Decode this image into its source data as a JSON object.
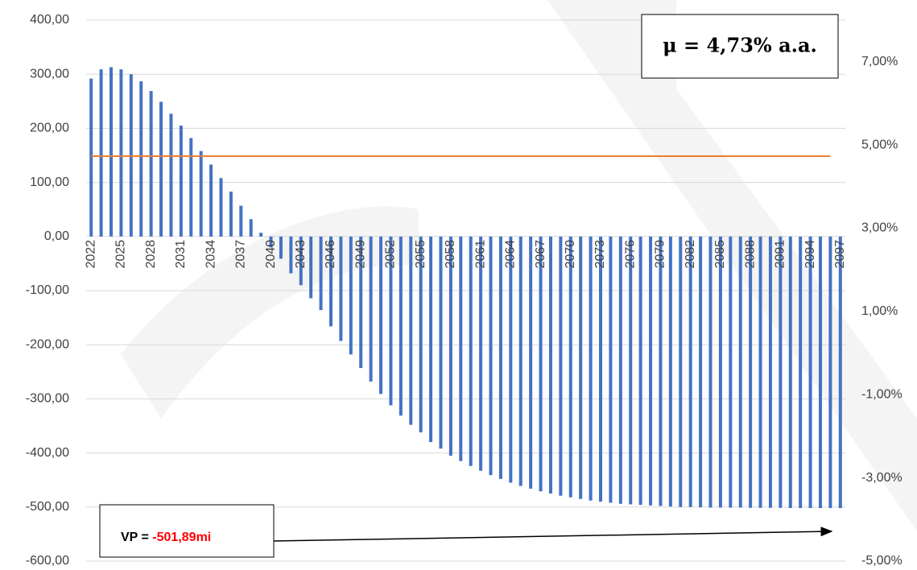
{
  "chart_data": {
    "type": "bar",
    "categories": [
      "2022",
      null,
      null,
      "2025",
      null,
      null,
      "2028",
      null,
      null,
      "2031",
      null,
      null,
      "2034",
      null,
      null,
      "2037",
      null,
      null,
      "2040",
      null,
      null,
      "2043",
      null,
      null,
      "2046",
      null,
      null,
      "2049",
      null,
      null,
      "2052",
      null,
      null,
      "2055",
      null,
      null,
      "2058",
      null,
      null,
      "2061",
      null,
      null,
      "2064",
      null,
      null,
      "2067",
      null,
      null,
      "2070",
      null,
      null,
      "2073",
      null,
      null,
      "2076",
      null,
      null,
      "2079",
      null,
      null,
      "2082",
      null,
      null,
      "2085",
      null,
      null,
      "2088",
      null,
      null,
      "2091",
      null,
      null,
      "2094",
      null,
      null,
      "2097"
    ],
    "values": [
      292,
      309,
      313,
      309,
      300,
      287,
      269,
      249,
      227,
      205,
      182,
      158,
      133,
      108,
      83,
      57,
      32,
      7,
      -20,
      -41,
      -68,
      -90,
      -114,
      -136,
      -166,
      -193,
      -218,
      -243,
      -268,
      -291,
      -312,
      -331,
      -348,
      -362,
      -380,
      -392,
      -405,
      -415,
      -424,
      -433,
      -441,
      -448,
      -455,
      -461,
      -466,
      -471,
      -475,
      -479,
      -482,
      -485,
      -488,
      -490,
      -492,
      -494,
      -495,
      -496,
      -497,
      -498,
      -499,
      -500,
      -500,
      -500.5,
      -501,
      -501,
      -501,
      -501,
      -501.5,
      -501.5,
      -501.5,
      -501.5,
      -501.8,
      -501.8,
      -501.8,
      -501.9,
      -501.89,
      -501.89
    ],
    "color": "#4472c4",
    "ylim": [
      -600,
      400
    ],
    "yticks": [
      {
        "value": -600,
        "label": "-600,00"
      },
      {
        "value": -500,
        "label": "-500,00"
      },
      {
        "value": -400,
        "label": "-400,00"
      },
      {
        "value": -300,
        "label": "-300,00"
      },
      {
        "value": -200,
        "label": "-200,00"
      },
      {
        "value": -100,
        "label": "-100,00"
      },
      {
        "value": 0,
        "label": "0,00"
      },
      {
        "value": 100,
        "label": "100,00"
      },
      {
        "value": 200,
        "label": "200,00"
      },
      {
        "value": 300,
        "label": "300,00"
      },
      {
        "value": 400,
        "label": "400,00"
      }
    ],
    "y2lim": [
      -5,
      8
    ],
    "y2ticks": [
      {
        "value": -5,
        "label": "-5,00%"
      },
      {
        "value": -3,
        "label": "-3,00%"
      },
      {
        "value": -1,
        "label": "-1,00%"
      },
      {
        "value": 1,
        "label": "1,00%"
      },
      {
        "value": 3,
        "label": "3,00%"
      },
      {
        "value": 5,
        "label": "5,00%"
      },
      {
        "value": 7,
        "label": "7,00%"
      }
    ],
    "reference_line": {
      "value": 4.73,
      "axis": "y2",
      "color": "#ed7d31"
    },
    "grid": true,
    "annotations": {
      "mu": "μ = 4,73% a.a.",
      "vp_prefix": "VP = ",
      "vp_value": "-501,89mi"
    }
  }
}
